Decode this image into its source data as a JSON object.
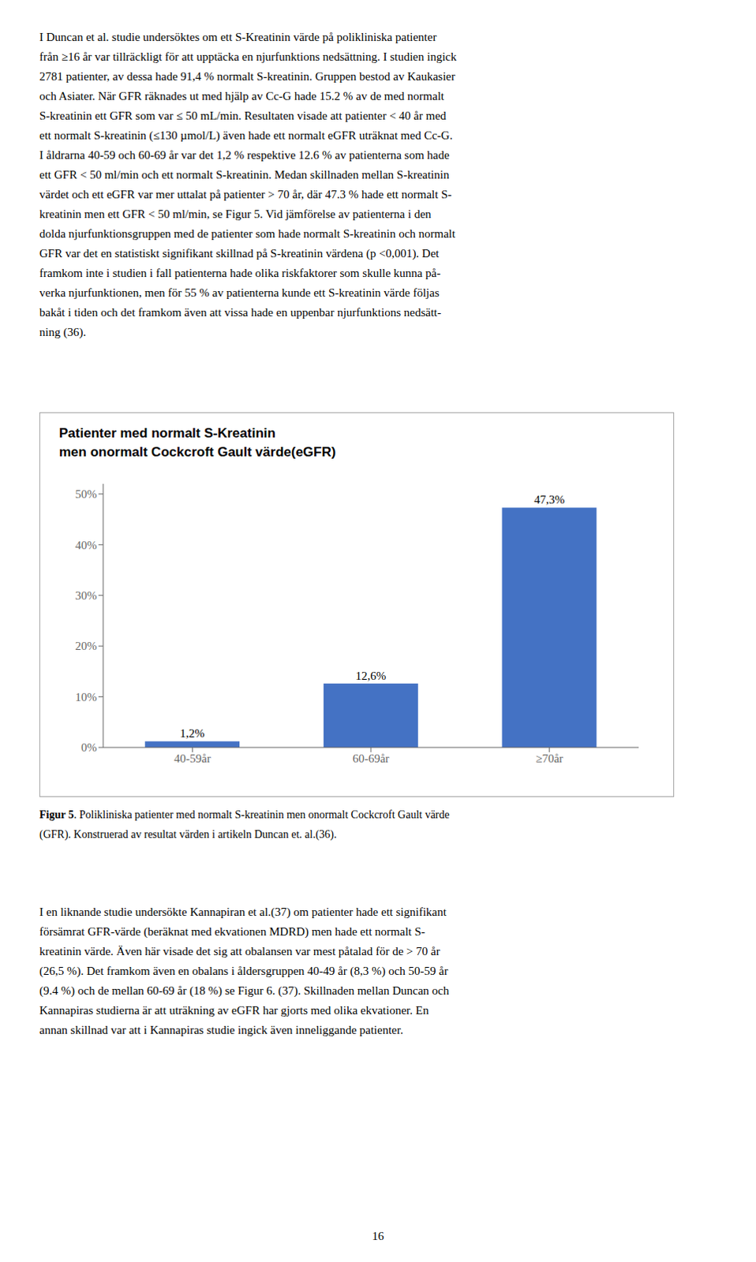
{
  "chart_data": {
    "type": "bar",
    "title": "Patienter med normalt S-Kreatinin\nmen onormalt Cockcroft Gault värde(eGFR)",
    "categories": [
      "40-59år",
      "60-69år",
      "≥70år"
    ],
    "values": [
      1.2,
      12.6,
      47.3
    ],
    "value_labels": [
      "1,2%",
      "12,6%",
      "47,3%"
    ],
    "data_labels": true,
    "color": "#4472C4",
    "ylim": [
      0,
      52
    ],
    "yticks": [
      {
        "value": 0,
        "label": "0%"
      },
      {
        "value": 10,
        "label": "10%"
      },
      {
        "value": 20,
        "label": "20%"
      },
      {
        "value": 30,
        "label": "30%"
      },
      {
        "value": 40,
        "label": "40%"
      },
      {
        "value": 50,
        "label": "50%"
      }
    ],
    "grid": false
  },
  "text_before": [
    "I Duncan et al. studie undersöktes om ett S-Kreatinin värde på polikliniska patienter",
    "från ≥16 år var tillräckligt för att upptäcka en njurfunktions nedsättning. I studien ingick",
    "2781 patienter, av dessa hade 91,4 % normalt S-kreatinin. Gruppen bestod av Kaukasier",
    "och Asiater. När GFR räknades ut med hjälp av Cc-G hade 15.2 % av de med normalt",
    "S-kreatinin ett GFR som var ≤ 50 mL/min. Resultaten visade att patienter < 40 år med",
    "ett normalt S-kreatinin (≤130 µmol/L) även hade ett normalt eGFR uträknat med Cc-G.",
    "I åldrarna 40-59 och 60-69 år var det 1,2 % respektive 12.6 % av patienterna som hade",
    "ett GFR < 50 ml/min och ett normalt S-kreatinin. Medan skillnaden mellan S-kreatinin",
    "värdet och ett eGFR var mer uttalat på patienter > 70 år, där 47.3 % hade ett normalt S-",
    "kreatinin men ett GFR < 50 ml/min, se Figur 5. Vid jämförelse av patienterna i den",
    "dolda njurfunktionsgruppen med de patienter som hade normalt S-kreatinin och normalt",
    "GFR var det en statistiskt signifikant skillnad på S-kreatinin värdena (p <0,001). Det",
    "framkom inte i studien i fall patienterna hade olika riskfaktorer som skulle kunna på-",
    "verka njurfunktionen, men för 55 % av patienterna kunde ett S-kreatinin värde följas",
    "bakåt i tiden och det framkom även att vissa hade en uppenbar njurfunktions nedsätt-",
    "ning (36)."
  ],
  "caption": {
    "bold": "Figur 5",
    "lines": [
      ". Polikliniska patienter med normalt S-kreatinin men onormalt Cockcroft Gault värde",
      "(GFR). Konstruerad av resultat värden i artikeln Duncan et. al.(36)."
    ]
  },
  "text_after": [
    "I en liknande studie undersökte Kannapiran et al.(37) om patienter hade ett signifikant",
    "försämrat GFR-värde (beräknat med ekvationen MDRD) men hade ett normalt S-",
    "kreatinin värde. Även här visade det sig att obalansen var mest påtalad för de > 70 år",
    "(26,5 %). Det framkom även en obalans i åldersgruppen 40-49 år (8,3 %) och 50-59 år",
    "(9.4 %) och de mellan 60-69 år (18 %) se Figur 6. (37). Skillnaden mellan Duncan och",
    "Kannapiras studierna är att uträkning av eGFR har gjorts med olika ekvationer. En",
    "annan skillnad var att i Kannapiras studie ingick även inneliggande patienter."
  ],
  "page_number": "16"
}
